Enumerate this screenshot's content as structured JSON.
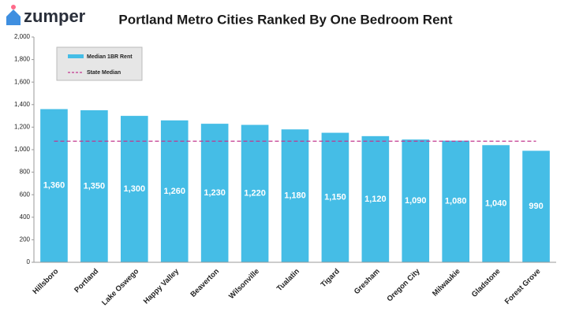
{
  "brand": "zumper",
  "chart_data": {
    "type": "bar",
    "title": "Portland Metro Cities Ranked By One Bedroom Rent",
    "categories": [
      "Hillsboro",
      "Portland",
      "Lake Oswego",
      "Happy Valley",
      "Beaverton",
      "Wilsonville",
      "Tualatin",
      "Tigard",
      "Gresham",
      "Oregon City",
      "Milwaukie",
      "Gladstone",
      "Forest Grove"
    ],
    "series": [
      {
        "name": "Median 1BR Rent",
        "color": "#45bde6",
        "values": [
          1360,
          1350,
          1300,
          1260,
          1230,
          1220,
          1180,
          1150,
          1120,
          1090,
          1080,
          1040,
          990
        ],
        "value_labels": [
          "1,360",
          "1,350",
          "1,300",
          "1,260",
          "1,230",
          "1,220",
          "1,180",
          "1,150",
          "1,120",
          "1,090",
          "1,080",
          "1,040",
          "990"
        ]
      }
    ],
    "reference_line": {
      "name": "State Median",
      "value": 1075,
      "color": "#c2378f"
    },
    "ylim": [
      0,
      2000
    ],
    "yticks": [
      0,
      200,
      400,
      600,
      800,
      {
        "value": 1000,
        "label": "1,000"
      },
      {
        "value": 1200,
        "label": "1,200"
      },
      {
        "value": 1400,
        "label": "1,400"
      },
      {
        "value": 1600,
        "label": "1,600"
      },
      {
        "value": 1800,
        "label": "1,800"
      },
      {
        "value": 2000,
        "label": "2,000"
      }
    ],
    "grid": false
  }
}
